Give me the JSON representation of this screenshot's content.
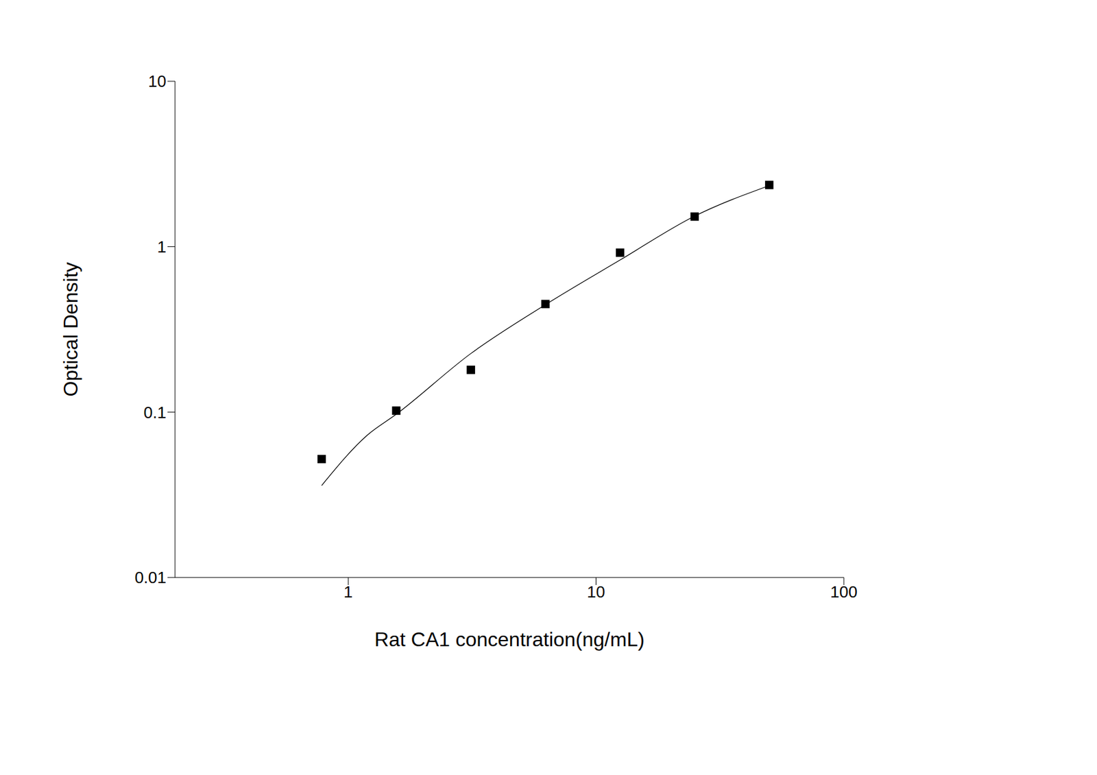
{
  "chart_data": {
    "type": "scatter",
    "x_label": "Rat CA1 concentration(ng/mL)",
    "y_label": "Optical Density",
    "log": true,
    "grid": false,
    "x": [
      0.78125,
      1.5625,
      3.125,
      6.25,
      12.5,
      25,
      50
    ],
    "values": [
      0.052,
      0.102,
      0.18,
      0.45,
      0.92,
      1.52,
      2.36
    ],
    "color": "#000000",
    "marker": "square",
    "curve": {
      "type": "line",
      "color": "#000000",
      "line_style": "solid",
      "x": [
        0.78125,
        1.2,
        1.5625,
        3.125,
        6.25,
        12.5,
        25,
        50
      ],
      "values": [
        0.036,
        0.073,
        0.097,
        0.226,
        0.446,
        0.83,
        1.53,
        2.34
      ]
    },
    "xlim": [
      0.2,
      100
    ],
    "xticks": [
      1,
      10,
      100
    ],
    "ylim": [
      0.01,
      10
    ],
    "yticks": [
      0.01,
      0.1,
      1,
      10
    ]
  }
}
